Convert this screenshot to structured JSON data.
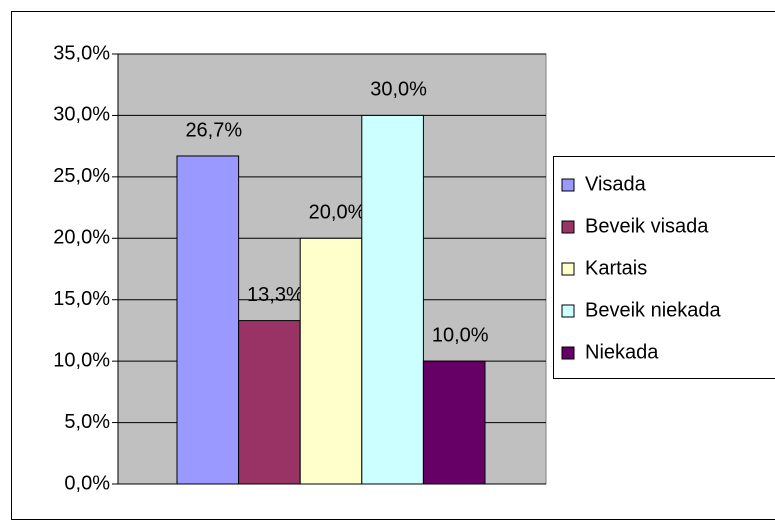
{
  "chart_data": {
    "type": "bar",
    "series": [
      {
        "name": "Visada",
        "color": "#9999ff",
        "values": [
          26.7
        ],
        "value_labels": [
          "26,7%"
        ]
      },
      {
        "name": "Beveik visada",
        "color": "#993366",
        "values": [
          13.3
        ],
        "value_labels": [
          "13,3%"
        ]
      },
      {
        "name": "Kartais",
        "color": "#ffffcc",
        "values": [
          20.0
        ],
        "value_labels": [
          "20,0%"
        ]
      },
      {
        "name": "Beveik niekada",
        "color": "#ccffff",
        "values": [
          30.0
        ],
        "value_labels": [
          "30,0%"
        ]
      },
      {
        "name": "Niekada",
        "color": "#660066",
        "values": [
          10.0
        ],
        "value_labels": [
          "10,0%"
        ]
      }
    ],
    "ylim": [
      0,
      35
    ],
    "yticks": [
      {
        "value": 0,
        "label": "0,0%"
      },
      {
        "value": 5,
        "label": "5,0%"
      },
      {
        "value": 10,
        "label": "10,0%"
      },
      {
        "value": 15,
        "label": "15,0%"
      },
      {
        "value": 20,
        "label": "20,0%"
      },
      {
        "value": 25,
        "label": "25,0%"
      },
      {
        "value": 30,
        "label": "30,0%"
      },
      {
        "value": 35,
        "label": "35,0%"
      }
    ],
    "grid": true,
    "legend": "right",
    "plot_background": "#c0c0c0"
  }
}
